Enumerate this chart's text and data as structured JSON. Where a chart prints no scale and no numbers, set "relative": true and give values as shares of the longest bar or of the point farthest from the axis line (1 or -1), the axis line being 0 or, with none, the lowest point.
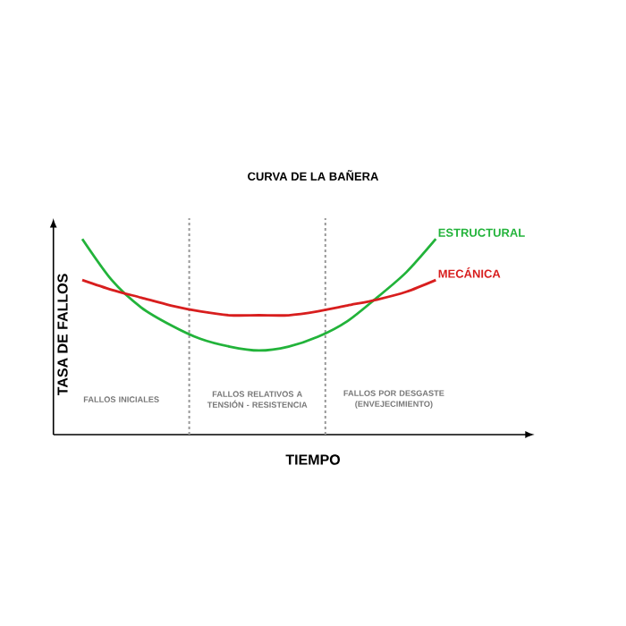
{
  "chart_data": {
    "type": "line",
    "title": "CURVA DE LA BAÑERA",
    "xlabel": "TIEMPO",
    "ylabel": "TASA DE FALLOS",
    "relative": true,
    "legend": false,
    "marker": "none",
    "line_style": "solid",
    "categories": [
      null,
      null,
      null,
      null,
      null,
      null,
      null,
      null,
      null,
      null,
      null,
      null,
      null
    ],
    "series": [
      {
        "name": "ESTRUCTURAL",
        "color": "#22b33a",
        "values": [
          1.0,
          0.79,
          0.65,
          0.56,
          0.49,
          0.45,
          0.43,
          0.45,
          0.5,
          0.58,
          0.7,
          0.83,
          1.0
        ]
      },
      {
        "name": "MECÁNICA",
        "color": "#d81e1e",
        "values": [
          0.79,
          0.74,
          0.7,
          0.66,
          0.63,
          0.61,
          0.61,
          0.61,
          0.63,
          0.66,
          0.69,
          0.73,
          0.79
        ]
      }
    ],
    "annotations": [
      "FALLOS INICIALES",
      "FALLOS RELATIVOS A TENSIÓN - RESISTENCIA",
      "FALLOS POR DESGASTE (ENVEJECIMIENTO)"
    ]
  }
}
